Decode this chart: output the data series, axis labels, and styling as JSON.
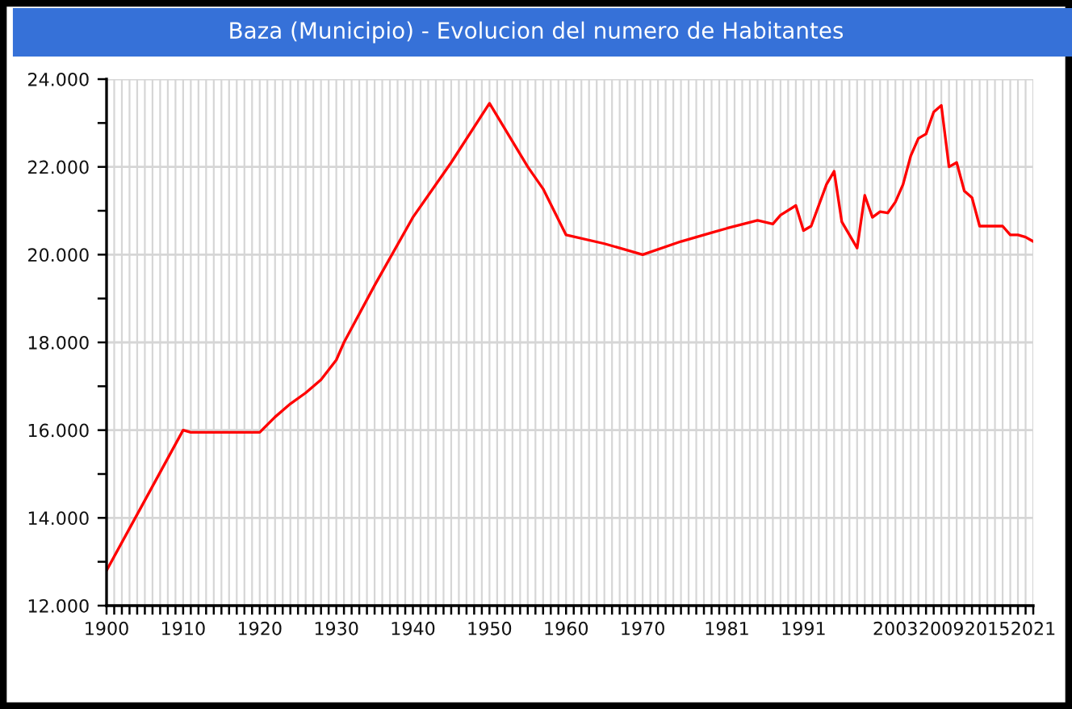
{
  "chart_data": {
    "type": "line",
    "title": "Baza (Municipio) - Evolucion del numero de Habitantes",
    "x": [
      1900,
      1905,
      1910,
      1911,
      1920,
      1922,
      1924,
      1926,
      1928,
      1930,
      1931,
      1935,
      1940,
      1945,
      1950,
      1955,
      1957,
      1960,
      1965,
      1970,
      1975,
      1979,
      1981,
      1985,
      1987,
      1988,
      1990,
      1991,
      1992,
      1994,
      1995,
      1996,
      1998,
      1999,
      2000,
      2001,
      2002,
      2003,
      2004,
      2005,
      2006,
      2007,
      2008,
      2009,
      2010,
      2011,
      2012,
      2013,
      2014,
      2015,
      2016,
      2017,
      2018,
      2019,
      2020,
      2021
    ],
    "series": [
      {
        "color": "#ff0000",
        "values": [
          12800,
          14400,
          16000,
          15950,
          15950,
          16300,
          16600,
          16850,
          17150,
          17600,
          18000,
          19300,
          20850,
          22100,
          23450,
          22000,
          21500,
          20450,
          20250,
          20000,
          20300,
          20500,
          20600,
          20780,
          20700,
          20900,
          21120,
          20550,
          20650,
          21600,
          21900,
          20750,
          20150,
          21350,
          20850,
          20980,
          20950,
          21200,
          21600,
          22250,
          22650,
          22750,
          23250,
          23400,
          22000,
          22100,
          21450,
          21300,
          20650,
          20650,
          20650,
          20650,
          20450,
          20450,
          20400,
          20300
        ]
      }
    ],
    "xlim": [
      1900,
      2021
    ],
    "xticks": [
      1900,
      {
        "value": 1901,
        "label": null
      },
      {
        "value": 1902,
        "label": null
      },
      {
        "value": 1903,
        "label": null
      },
      {
        "value": 1904,
        "label": null
      },
      {
        "value": 1905,
        "label": null
      },
      {
        "value": 1906,
        "label": null
      },
      {
        "value": 1907,
        "label": null
      },
      {
        "value": 1908,
        "label": null
      },
      {
        "value": 1909,
        "label": null
      },
      1910,
      {
        "value": 1911,
        "label": null
      },
      {
        "value": 1912,
        "label": null
      },
      {
        "value": 1913,
        "label": null
      },
      {
        "value": 1914,
        "label": null
      },
      {
        "value": 1915,
        "label": null
      },
      {
        "value": 1916,
        "label": null
      },
      {
        "value": 1917,
        "label": null
      },
      {
        "value": 1918,
        "label": null
      },
      {
        "value": 1919,
        "label": null
      },
      1920,
      {
        "value": 1921,
        "label": null
      },
      {
        "value": 1922,
        "label": null
      },
      {
        "value": 1923,
        "label": null
      },
      {
        "value": 1924,
        "label": null
      },
      {
        "value": 1925,
        "label": null
      },
      {
        "value": 1926,
        "label": null
      },
      {
        "value": 1927,
        "label": null
      },
      {
        "value": 1928,
        "label": null
      },
      {
        "value": 1929,
        "label": null
      },
      1930,
      {
        "value": 1931,
        "label": null
      },
      {
        "value": 1932,
        "label": null
      },
      {
        "value": 1933,
        "label": null
      },
      {
        "value": 1934,
        "label": null
      },
      {
        "value": 1935,
        "label": null
      },
      {
        "value": 1936,
        "label": null
      },
      {
        "value": 1937,
        "label": null
      },
      {
        "value": 1938,
        "label": null
      },
      {
        "value": 1939,
        "label": null
      },
      1940,
      {
        "value": 1941,
        "label": null
      },
      {
        "value": 1942,
        "label": null
      },
      {
        "value": 1943,
        "label": null
      },
      {
        "value": 1944,
        "label": null
      },
      {
        "value": 1945,
        "label": null
      },
      {
        "value": 1946,
        "label": null
      },
      {
        "value": 1947,
        "label": null
      },
      {
        "value": 1948,
        "label": null
      },
      {
        "value": 1949,
        "label": null
      },
      1950,
      {
        "value": 1951,
        "label": null
      },
      {
        "value": 1952,
        "label": null
      },
      {
        "value": 1953,
        "label": null
      },
      {
        "value": 1954,
        "label": null
      },
      {
        "value": 1955,
        "label": null
      },
      {
        "value": 1956,
        "label": null
      },
      {
        "value": 1957,
        "label": null
      },
      {
        "value": 1958,
        "label": null
      },
      {
        "value": 1959,
        "label": null
      },
      1960,
      {
        "value": 1961,
        "label": null
      },
      {
        "value": 1962,
        "label": null
      },
      {
        "value": 1963,
        "label": null
      },
      {
        "value": 1964,
        "label": null
      },
      {
        "value": 1965,
        "label": null
      },
      {
        "value": 1966,
        "label": null
      },
      {
        "value": 1967,
        "label": null
      },
      {
        "value": 1968,
        "label": null
      },
      {
        "value": 1969,
        "label": null
      },
      1970,
      {
        "value": 1971,
        "label": null
      },
      {
        "value": 1972,
        "label": null
      },
      {
        "value": 1973,
        "label": null
      },
      {
        "value": 1974,
        "label": null
      },
      {
        "value": 1975,
        "label": null
      },
      {
        "value": 1976,
        "label": null
      },
      {
        "value": 1977,
        "label": null
      },
      {
        "value": 1978,
        "label": null
      },
      {
        "value": 1979,
        "label": null
      },
      {
        "value": 1980,
        "label": null
      },
      1981,
      {
        "value": 1982,
        "label": null
      },
      {
        "value": 1983,
        "label": null
      },
      {
        "value": 1984,
        "label": null
      },
      {
        "value": 1985,
        "label": null
      },
      {
        "value": 1986,
        "label": null
      },
      {
        "value": 1987,
        "label": null
      },
      {
        "value": 1988,
        "label": null
      },
      {
        "value": 1989,
        "label": null
      },
      {
        "value": 1990,
        "label": null
      },
      1991,
      {
        "value": 1992,
        "label": null
      },
      {
        "value": 1993,
        "label": null
      },
      {
        "value": 1994,
        "label": null
      },
      {
        "value": 1995,
        "label": null
      },
      {
        "value": 1996,
        "label": null
      },
      {
        "value": 1997,
        "label": null
      },
      {
        "value": 1998,
        "label": null
      },
      {
        "value": 1999,
        "label": null
      },
      {
        "value": 2000,
        "label": null
      },
      {
        "value": 2001,
        "label": null
      },
      {
        "value": 2002,
        "label": null
      },
      2003,
      {
        "value": 2004,
        "label": null
      },
      {
        "value": 2005,
        "label": null
      },
      {
        "value": 2006,
        "label": null
      },
      {
        "value": 2007,
        "label": null
      },
      {
        "value": 2008,
        "label": null
      },
      2009,
      {
        "value": 2010,
        "label": null
      },
      {
        "value": 2011,
        "label": null
      },
      {
        "value": 2012,
        "label": null
      },
      {
        "value": 2013,
        "label": null
      },
      {
        "value": 2014,
        "label": null
      },
      2015,
      {
        "value": 2016,
        "label": null
      },
      {
        "value": 2017,
        "label": null
      },
      {
        "value": 2018,
        "label": null
      },
      {
        "value": 2019,
        "label": null
      },
      {
        "value": 2020,
        "label": null
      },
      2021
    ],
    "ylim": [
      12000,
      24000
    ],
    "yticks": [
      {
        "value": 12000,
        "label": "12.000"
      },
      {
        "value": 13000,
        "label": null
      },
      {
        "value": 14000,
        "label": "14.000"
      },
      {
        "value": 15000,
        "label": null
      },
      {
        "value": 16000,
        "label": "16.000"
      },
      {
        "value": 17000,
        "label": null
      },
      {
        "value": 18000,
        "label": "18.000"
      },
      {
        "value": 19000,
        "label": null
      },
      {
        "value": 20000,
        "label": "20.000"
      },
      {
        "value": 21000,
        "label": null
      },
      {
        "value": 22000,
        "label": "22.000"
      },
      {
        "value": 23000,
        "label": null
      },
      {
        "value": 24000,
        "label": "24.000"
      }
    ],
    "grid": true,
    "marker": "none",
    "line_style": "solid"
  }
}
